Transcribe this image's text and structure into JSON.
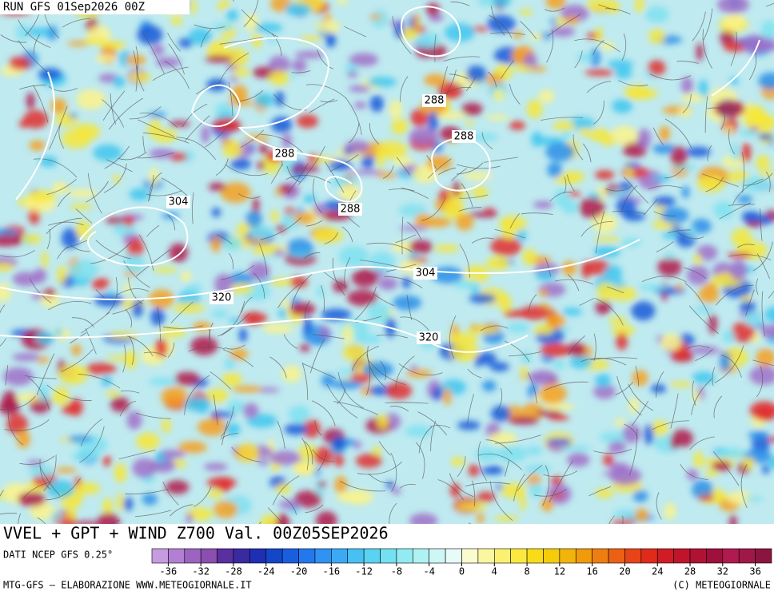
{
  "header": {
    "run": "RUN GFS 01Sep2026 00Z"
  },
  "map": {
    "contour_labels": [
      304,
      288,
      288,
      288,
      288,
      304,
      320,
      320
    ]
  },
  "title": "VVEL + GPT + WIND Z700 Val. 00Z05SEP2026",
  "source": "DATI NCEP GFS 0.25°",
  "colorbar": {
    "range": [
      -38,
      38
    ],
    "ticks": [
      -36,
      -32,
      -28,
      -24,
      -20,
      -16,
      -12,
      -8,
      -4,
      0,
      4,
      8,
      12,
      16,
      20,
      24,
      28,
      32,
      36
    ],
    "colors": [
      "#c79be0",
      "#b27fd2",
      "#9c63c0",
      "#8a4fb0",
      "#5a2fa0",
      "#3a2aa0",
      "#1e2fb4",
      "#1446c8",
      "#1a5ee0",
      "#2478ee",
      "#2f92f4",
      "#3aaaf6",
      "#47c0f4",
      "#5ad2f2",
      "#74e0f2",
      "#92eaf2",
      "#b0f2f2",
      "#cdf6f4",
      "#e8fbf6",
      "#fbfbd0",
      "#fbf6a0",
      "#fbf070",
      "#fbe840",
      "#f8dc18",
      "#f4cc0a",
      "#f2b40a",
      "#f09a0c",
      "#ee7e10",
      "#ec6014",
      "#e84418",
      "#e02a1c",
      "#d01c24",
      "#c0142c",
      "#b01234",
      "#a0103c",
      "#b01a50",
      "#a01848",
      "#8c1440"
    ]
  },
  "footer": {
    "left": "MTG-GFS – ELABORAZIONE WWW.METEOGIORNALE.IT",
    "right": "(C) METEOGIORNALE"
  }
}
